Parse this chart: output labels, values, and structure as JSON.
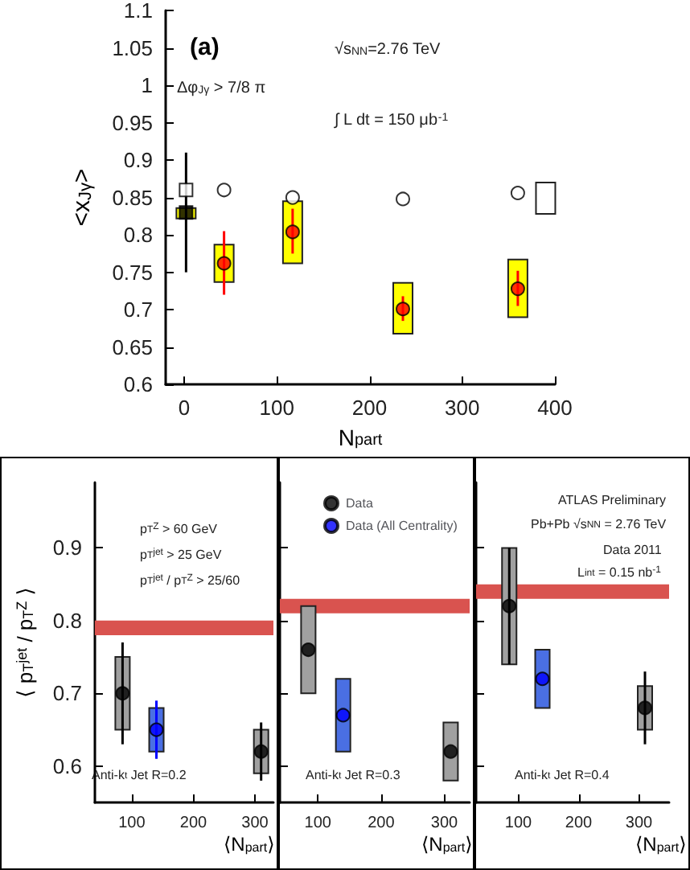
{
  "chart_data": [
    {
      "type": "scatter",
      "title": "(a)",
      "xlabel": "N$_{part}$",
      "ylabel": "<x$_{Jγ}$>",
      "xlim": [
        -20,
        400
      ],
      "xticks": [
        0,
        100,
        200,
        300,
        400
      ],
      "ylim": [
        0.6,
        1.1
      ],
      "yticks": [
        0.6,
        0.65,
        0.7,
        0.75,
        0.8,
        0.85,
        0.9,
        0.95,
        1,
        1.05,
        1.1
      ],
      "legend": false,
      "annotations": [
        "√s$_{NN}$=2.76 TeV",
        "Δφ$_{Jγ}$ > 7/8 π",
        "∫ L dt = 150 μb$^{-1}$"
      ],
      "series": [
        {
          "type": "bar",
          "color": "#ffff00",
          "x": [
            2,
            43,
            117,
            236,
            360
          ],
          "base": [
            0.822,
            0.737,
            0.762,
            0.668,
            0.69
          ],
          "values": [
            0.014,
            0.05,
            0.083,
            0.068,
            0.077
          ]
        },
        {
          "type": "bar",
          "color": "#ffffff",
          "x": [
            390
          ],
          "base": [
            0.828
          ],
          "values": [
            0.042
          ]
        },
        {
          "type": "scatter",
          "color": "#ff0000",
          "marker": "circle",
          "x": [
            43,
            117,
            236,
            360
          ],
          "values": [
            0.762,
            0.804,
            0.701,
            0.728
          ],
          "errors": [
            [
              0.72,
              0.805
            ],
            [
              0.775,
              0.835
            ],
            [
              0.685,
              0.718
            ],
            [
              0.705,
              0.752
            ]
          ]
        },
        {
          "type": "scatter",
          "color": "#000000",
          "marker": "square",
          "x": [
            2
          ],
          "values": [
            0.83
          ],
          "errors": [
            [
              0.75,
              0.91
            ]
          ]
        },
        {
          "type": "scatter",
          "color": "#ffffff",
          "marker": "square",
          "x": [
            2
          ],
          "values": [
            0.86
          ]
        },
        {
          "type": "scatter",
          "color": "#ffffff",
          "marker": "circle",
          "x": [
            43,
            117,
            236,
            360
          ],
          "values": [
            0.86,
            0.85,
            0.848,
            0.856
          ]
        }
      ]
    },
    {
      "type": "scatter",
      "xlabel": "⟨N$_{part}$⟩",
      "ylabel": "⟨ p$_{T}$$^{jet}$ / p$_{T}$$^{Z}$ ⟩",
      "xlim": [
        40,
        330
      ],
      "xticks": [
        100,
        200,
        300
      ],
      "ylim": [
        0.55,
        0.99
      ],
      "yticks": [
        0.6,
        0.7,
        0.8,
        0.9
      ],
      "legend": false,
      "annotations": [
        "p$_{T}$$^{Z}$ > 60 GeV",
        "p$_{T}$$^{jet}$ > 25 GeV",
        "p$_{T}$$^{jet}$ / p$_{T}$$^{Z}$ > 25/60",
        "Anti-k$_{t}$ Jet R=0.2"
      ],
      "bands": [
        {
          "axis": "y",
          "from": 0.78,
          "to": 0.8,
          "color": "#d9534f"
        }
      ],
      "series": [
        {
          "type": "bar",
          "color": "#a0a0a0",
          "x": [
            85,
            310
          ],
          "base": [
            0.65,
            0.59
          ],
          "values": [
            0.1,
            0.06
          ]
        },
        {
          "type": "bar",
          "color": "#4a6fe3",
          "x": [
            140
          ],
          "base": [
            0.62
          ],
          "values": [
            0.06
          ]
        },
        {
          "type": "scatter",
          "color": "#000000",
          "marker": "circle",
          "x": [
            85,
            310
          ],
          "values": [
            0.7,
            0.62
          ],
          "errors": [
            [
              0.63,
              0.77
            ],
            [
              0.58,
              0.66
            ]
          ]
        },
        {
          "type": "scatter",
          "color": "#0000ff",
          "marker": "circle",
          "x": [
            140
          ],
          "values": [
            0.65
          ],
          "errors": [
            [
              0.61,
              0.69
            ]
          ]
        }
      ]
    },
    {
      "type": "scatter",
      "xlabel": "⟨N$_{part}$⟩",
      "xlim": [
        40,
        340
      ],
      "xticks": [
        100,
        200,
        300
      ],
      "ylim": [
        0.55,
        0.99
      ],
      "yticks": [
        0.6,
        0.7,
        0.8,
        0.9
      ],
      "tick_labels": "x",
      "legend": "top",
      "annotations": [
        "Anti-k$_{t}$ Jet R=0.3"
      ],
      "bands": [
        {
          "axis": "y",
          "from": 0.81,
          "to": 0.83,
          "color": "#d9534f"
        }
      ],
      "series": [
        {
          "type": "bar",
          "color": "#a0a0a0",
          "x": [
            85,
            310
          ],
          "base": [
            0.7,
            0.58
          ],
          "values": [
            0.12,
            0.08
          ]
        },
        {
          "type": "bar",
          "color": "#4a6fe3",
          "x": [
            140
          ],
          "base": [
            0.62
          ],
          "values": [
            0.1
          ]
        },
        {
          "type": "scatter",
          "name": "Data",
          "color": "#000000",
          "marker": "circle",
          "x": [
            85,
            310
          ],
          "values": [
            0.76,
            0.62
          ]
        },
        {
          "type": "scatter",
          "name": "Data (All Centrality)",
          "color": "#0000ff",
          "marker": "circle",
          "x": [
            140
          ],
          "values": [
            0.67
          ]
        }
      ]
    },
    {
      "type": "scatter",
      "xlabel": "⟨N$_{part}$⟩",
      "xlim": [
        30,
        350
      ],
      "xticks": [
        100,
        200,
        300
      ],
      "ylim": [
        0.55,
        0.99
      ],
      "yticks": [
        0.6,
        0.7,
        0.8,
        0.9
      ],
      "tick_labels": "x",
      "legend": false,
      "annotations": [
        "ATLAS Preliminary",
        "Pb+Pb √s$_{NN}$ = 2.76 TeV",
        "Data 2011",
        "L$_{int}$ = 0.15 nb$^{-1}$",
        "Anti-k$_{t}$ Jet R=0.4"
      ],
      "bands": [
        {
          "axis": "y",
          "from": 0.83,
          "to": 0.85,
          "color": "#d9534f"
        }
      ],
      "series": [
        {
          "type": "bar",
          "color": "#a0a0a0",
          "x": [
            85,
            310
          ],
          "base": [
            0.74,
            0.65
          ],
          "values": [
            0.16,
            0.06
          ]
        },
        {
          "type": "bar",
          "color": "#4a6fe3",
          "x": [
            140
          ],
          "base": [
            0.68
          ],
          "values": [
            0.08
          ]
        },
        {
          "type": "scatter",
          "color": "#000000",
          "marker": "circle",
          "x": [
            85,
            310
          ],
          "values": [
            0.82,
            0.68
          ],
          "errors": [
            [
              0.74,
              0.9
            ],
            [
              0.63,
              0.73
            ]
          ]
        },
        {
          "type": "scatter",
          "color": "#0000ff",
          "marker": "circle",
          "x": [
            140
          ],
          "values": [
            0.72
          ]
        }
      ]
    }
  ]
}
